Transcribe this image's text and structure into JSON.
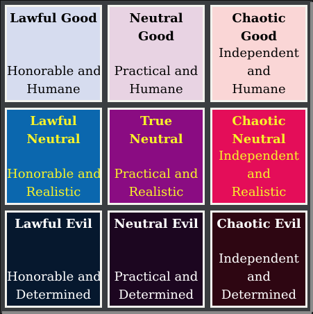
{
  "cells": [
    {
      "title": [
        "Lawful Good"
      ],
      "desc": [
        "Honorable and",
        "Humane"
      ],
      "bg": "#d6dcef",
      "title_color": "#000000",
      "desc_color": "#000000"
    },
    {
      "title": [
        "Neutral Good"
      ],
      "desc": [
        "Practical and",
        "Humane"
      ],
      "bg": "#e8d3e3",
      "title_color": "#000000",
      "desc_color": "#000000"
    },
    {
      "title": [
        "Chaotic Good"
      ],
      "desc": [
        "Independent",
        "and",
        "Humane"
      ],
      "bg": "#fad6d6",
      "title_color": "#000000",
      "desc_color": "#000000"
    },
    {
      "title": [
        "Lawful",
        "Neutral"
      ],
      "desc": [
        "Honorable and",
        "Realistic"
      ],
      "bg": "#0b67ae",
      "title_color": "#f7f22a",
      "desc_color": "#f7f22a"
    },
    {
      "title": [
        "True",
        "Neutral"
      ],
      "desc": [
        "Practical and",
        "Realistic"
      ],
      "bg": "#8a0c82",
      "title_color": "#f7f22a",
      "desc_color": "#f7f22a"
    },
    {
      "title": [
        "Chaotic",
        "Neutral"
      ],
      "desc": [
        "Independent",
        "and",
        "Realistic"
      ],
      "bg": "#e40d59",
      "title_color": "#f7f22a",
      "desc_color": "#f7f22a"
    },
    {
      "title": [
        "Lawful Evil"
      ],
      "desc": [
        "Honorable and",
        "Determined"
      ],
      "bg": "#06182e",
      "title_color": "#ffffff",
      "desc_color": "#ffffff"
    },
    {
      "title": [
        "Neutral Evil"
      ],
      "desc": [
        "Practical and",
        "Determined"
      ],
      "bg": "#1c0620",
      "title_color": "#ffffff",
      "desc_color": "#ffffff"
    },
    {
      "title": [
        "Chaotic Evil"
      ],
      "desc": [
        "Independent",
        "and",
        "Determined"
      ],
      "bg": "#2e0612",
      "title_color": "#ffffff",
      "desc_color": "#ffffff"
    }
  ]
}
